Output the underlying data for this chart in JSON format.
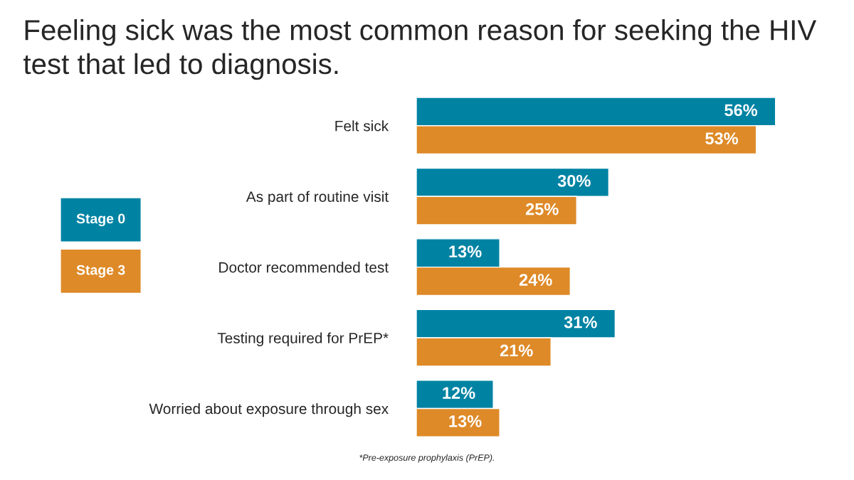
{
  "chart_data": {
    "type": "bar",
    "orientation": "horizontal",
    "title": "Feeling sick was the most common reason for seeking the HIV test that led to diagnosis.",
    "categories": [
      "Felt sick",
      "As part of routine visit",
      "Doctor recommended test",
      "Testing required for PrEP*",
      "Worried about exposure through sex"
    ],
    "series": [
      {
        "name": "Stage 0",
        "color": "#0083a3",
        "values": [
          56,
          30,
          13,
          31,
          12
        ],
        "value_labels": [
          "56%",
          "30%",
          "13%",
          "31%",
          "12%"
        ]
      },
      {
        "name": "Stage 3",
        "color": "#de8a28",
        "values": [
          53,
          25,
          24,
          21,
          13
        ],
        "value_labels": [
          "53%",
          "25%",
          "24%",
          "21%",
          "13%"
        ]
      }
    ],
    "legend": "left",
    "grid": false,
    "annotations": [
      "*Pre-exposure prophylaxis (PrEP)."
    ]
  }
}
